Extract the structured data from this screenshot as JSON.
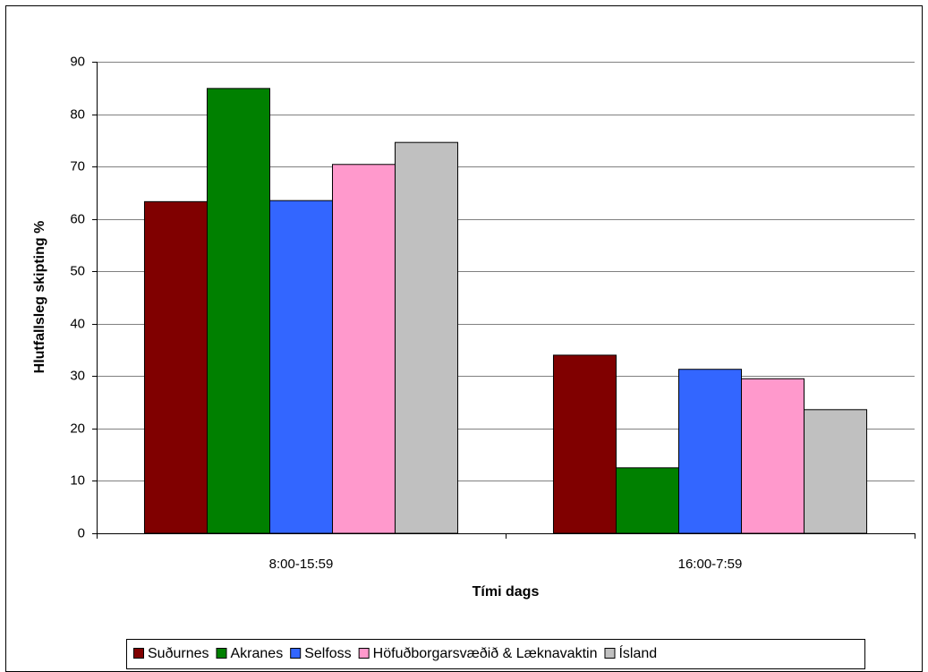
{
  "chart_data": {
    "type": "bar",
    "xlabel": "Tími dags",
    "ylabel": "Hlutfallsleg skipting %",
    "categories": [
      "8:00-15:59",
      "16:00-7:59"
    ],
    "series": [
      {
        "name": "Suðurnes",
        "color": "#800000",
        "values": [
          63.3,
          34.0
        ]
      },
      {
        "name": "Akranes",
        "color": "#008000",
        "values": [
          84.9,
          12.5
        ]
      },
      {
        "name": "Selfoss",
        "color": "#3366ff",
        "values": [
          63.5,
          31.3
        ]
      },
      {
        "name": "Höfuðborgarsvæðið & Læknavaktin",
        "color": "#ff99cc",
        "values": [
          70.4,
          29.5
        ]
      },
      {
        "name": "Ísland",
        "color": "#c0c0c0",
        "values": [
          74.6,
          23.6
        ]
      }
    ],
    "ylim": [
      0,
      90
    ],
    "yticks": [
      0,
      10,
      20,
      30,
      40,
      50,
      60,
      70,
      80,
      90
    ],
    "grid": true,
    "legend": "bottom"
  }
}
